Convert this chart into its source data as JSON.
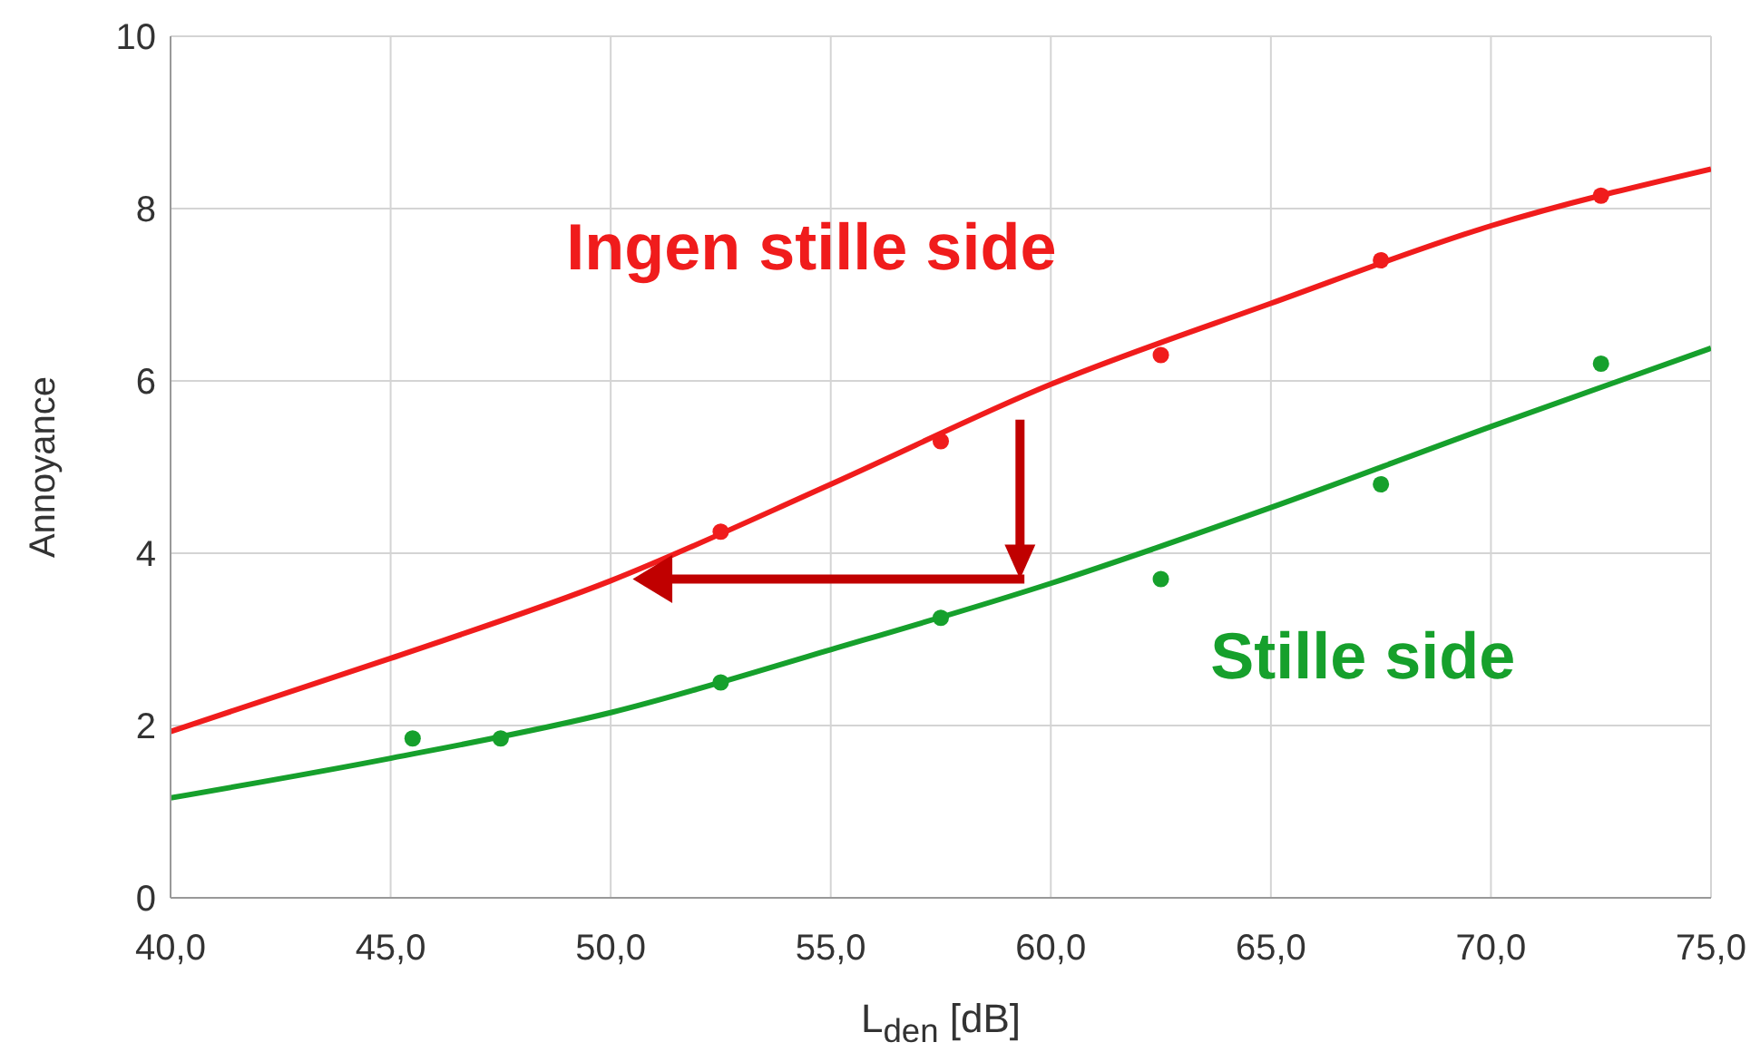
{
  "chart_data": {
    "type": "scatter",
    "xlabel": "L$_{den}$ [dB]",
    "ylabel": "Annoyance",
    "xlim": [
      40,
      75
    ],
    "xticks": [
      {
        "value": 40,
        "label": "40,0"
      },
      {
        "value": 45,
        "label": "45,0"
      },
      {
        "value": 50,
        "label": "50,0"
      },
      {
        "value": 55,
        "label": "55,0"
      },
      {
        "value": 60,
        "label": "60,0"
      },
      {
        "value": 65,
        "label": "65,0"
      },
      {
        "value": 70,
        "label": "70,0"
      },
      {
        "value": 75,
        "label": "75,0"
      }
    ],
    "ylim": [
      0,
      10
    ],
    "yticks": [
      0,
      2,
      4,
      6,
      8,
      10
    ],
    "grid": true,
    "series": [
      {
        "type": "line",
        "marker": "none",
        "color": "#f01c1c",
        "x": [
          40,
          45,
          50,
          55,
          60,
          65,
          70,
          75
        ],
        "values": [
          1.93,
          2.78,
          3.68,
          4.8,
          5.96,
          6.9,
          7.8,
          8.46
        ]
      },
      {
        "type": "line",
        "marker": "none",
        "color": "#16a02c",
        "x": [
          40,
          45,
          50,
          55,
          60,
          65,
          70,
          75
        ],
        "values": [
          1.16,
          1.62,
          2.15,
          2.88,
          3.65,
          4.53,
          5.47,
          6.38
        ]
      },
      {
        "type": "scatter",
        "marker": "circle",
        "name": "Ingen stille side",
        "color": "#f01c1c",
        "x": [
          52.5,
          57.5,
          62.5,
          67.5,
          72.5
        ],
        "values": [
          4.25,
          5.3,
          6.3,
          7.4,
          8.15
        ]
      },
      {
        "type": "scatter",
        "marker": "circle",
        "name": "Stille side",
        "color": "#16a02c",
        "x": [
          45.5,
          47.5,
          52.5,
          57.5,
          62.5,
          67.5,
          72.5
        ],
        "values": [
          1.85,
          1.85,
          2.5,
          3.25,
          3.7,
          4.8,
          6.2
        ]
      }
    ]
  }
}
